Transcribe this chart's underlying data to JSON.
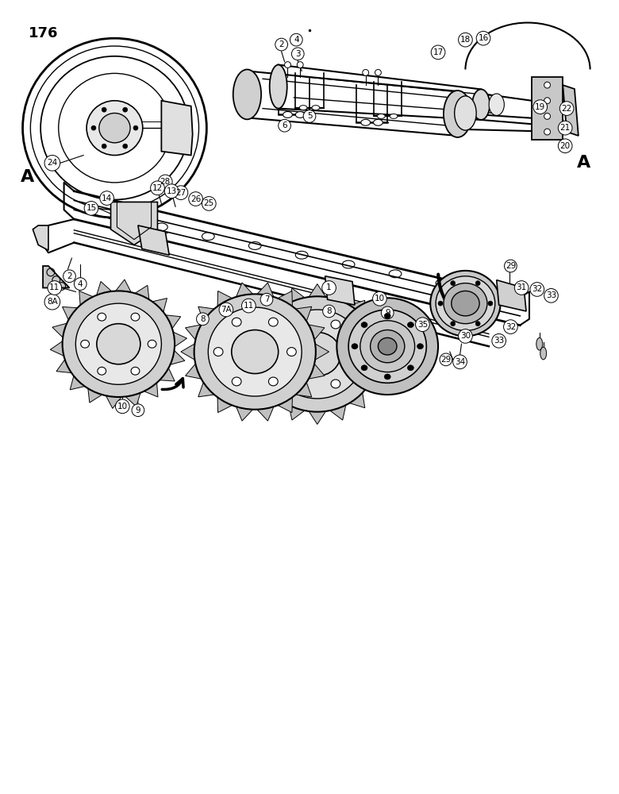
{
  "page_number": "176",
  "label_A": "A",
  "background_color": "#ffffff",
  "line_color": "#000000",
  "fig_width": 7.8,
  "fig_height": 10.0
}
